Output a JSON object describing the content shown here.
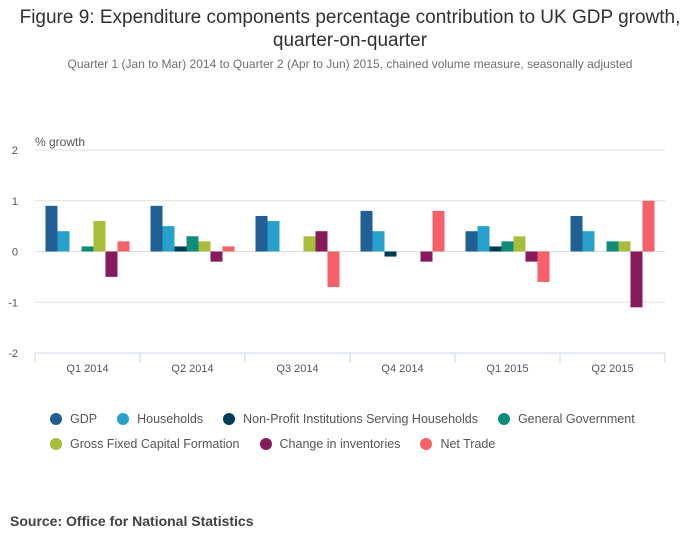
{
  "title": "Figure 9: Expenditure components percentage contribution to UK GDP growth, quarter-on-quarter",
  "subtitle": "Quarter 1 (Jan to Mar) 2014 to Quarter 2 (Apr to Jun) 2015, chained volume measure, seasonally adjusted",
  "source": "Source: Office for National Statistics",
  "chart_data": {
    "type": "bar",
    "title": "Figure 9: Expenditure components percentage contribution to UK GDP growth, quarter-on-quarter",
    "xlabel": "",
    "ylabel": "% growth",
    "ylim": [
      -2,
      2
    ],
    "yticks": [
      2,
      1,
      0,
      -1,
      -2
    ],
    "grid": true,
    "legend_position": "bottom",
    "categories": [
      "Q1 2014",
      "Q2 2014",
      "Q3 2014",
      "Q4 2014",
      "Q1 2015",
      "Q2 2015"
    ],
    "series": [
      {
        "name": "GDP",
        "color": "#206095",
        "values": [
          0.9,
          0.9,
          0.7,
          0.8,
          0.4,
          0.7
        ]
      },
      {
        "name": "Households",
        "color": "#27a0cc",
        "values": [
          0.4,
          0.5,
          0.6,
          0.4,
          0.5,
          0.4
        ]
      },
      {
        "name": "Non-Profit Institutions Serving Households",
        "color": "#003c57",
        "values": [
          0.0,
          0.1,
          0.0,
          -0.1,
          0.1,
          0.0
        ]
      },
      {
        "name": "General Government",
        "color": "#118c7b",
        "values": [
          0.1,
          0.3,
          0.0,
          0.0,
          0.2,
          0.2
        ]
      },
      {
        "name": "Gross Fixed Capital Formation",
        "color": "#a8bd3a",
        "values": [
          0.6,
          0.2,
          0.3,
          0.0,
          0.3,
          0.2
        ]
      },
      {
        "name": "Change in inventories",
        "color": "#871a5b",
        "values": [
          -0.5,
          -0.2,
          0.4,
          -0.2,
          -0.2,
          -1.1
        ]
      },
      {
        "name": "Net Trade",
        "color": "#f66068",
        "values": [
          0.2,
          0.1,
          -0.7,
          0.8,
          -0.6,
          1.0
        ]
      }
    ]
  }
}
